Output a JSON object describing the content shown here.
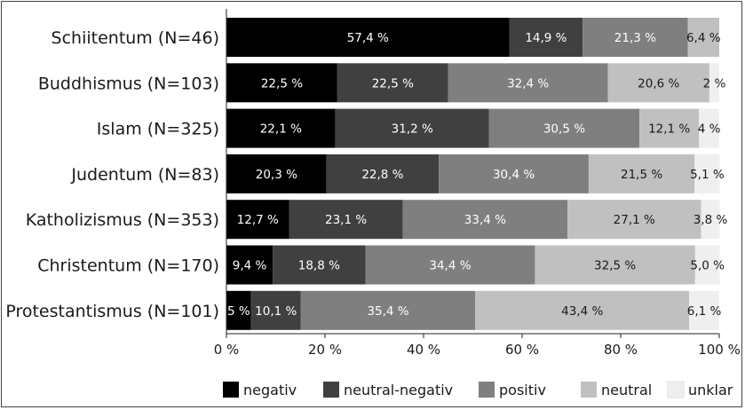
{
  "chart_data": {
    "type": "bar",
    "orientation": "horizontal",
    "stacked": true,
    "categories": [
      "Schiitentum (N=46)",
      "Buddhismus (N=103)",
      "Islam (N=325)",
      "Judentum (N=83)",
      "Katholizismus (N=353)",
      "Christentum (N=170)",
      "Protestantismus (N=101)"
    ],
    "series": [
      {
        "name": "negativ",
        "color": "#000000",
        "values": [
          57.4,
          22.5,
          22.1,
          20.3,
          12.7,
          9.4,
          5
        ],
        "labels": [
          "57,4 %",
          "22,5 %",
          "22,1 %",
          "20,3 %",
          "12,7 %",
          "9,4 %",
          "5 %"
        ],
        "label_color": "#ffffff"
      },
      {
        "name": "neutral-negativ",
        "color": "#404040",
        "values": [
          14.9,
          22.5,
          31.2,
          22.8,
          23.1,
          18.8,
          10.1
        ],
        "labels": [
          "14,9 %",
          "22,5 %",
          "31,2 %",
          "22,8 %",
          "23,1 %",
          "18,8 %",
          "10,1 %"
        ],
        "label_color": "#ffffff"
      },
      {
        "name": "positiv",
        "color": "#7f7f7f",
        "values": [
          21.3,
          32.4,
          30.5,
          30.4,
          33.4,
          34.4,
          35.4
        ],
        "labels": [
          "21,3 %",
          "32,4 %",
          "30,5 %",
          "30,4 %",
          "33,4 %",
          "34,4 %",
          "35,4 %"
        ],
        "label_color": "#ffffff"
      },
      {
        "name": "neutral",
        "color": "#c0c0c0",
        "values": [
          6.4,
          20.6,
          12.1,
          21.5,
          27.1,
          32.5,
          43.4
        ],
        "labels": [
          "6,4 %",
          "20,6 %",
          "12,1 %",
          "21,5 %",
          "27,1 %",
          "32,5 %",
          "43,4 %"
        ],
        "label_color": "#1a1a1a"
      },
      {
        "name": "unklar",
        "color": "#efefef",
        "values": [
          0,
          2,
          4.1,
          5.1,
          3.8,
          5.0,
          6.1
        ],
        "labels": [
          "",
          "2 %",
          "4 %",
          "5,1 %",
          "3,8 %",
          "5,0 %",
          "6,1 %"
        ],
        "label_color": "#1a1a1a"
      }
    ],
    "xlim": [
      0,
      100
    ],
    "xticks": [
      "0 %",
      "20 %",
      "40 %",
      "60 %",
      "80 %",
      "100 %"
    ],
    "xlabel": "",
    "ylabel": "",
    "title": "",
    "legend_position": "bottom",
    "grid": false
  }
}
